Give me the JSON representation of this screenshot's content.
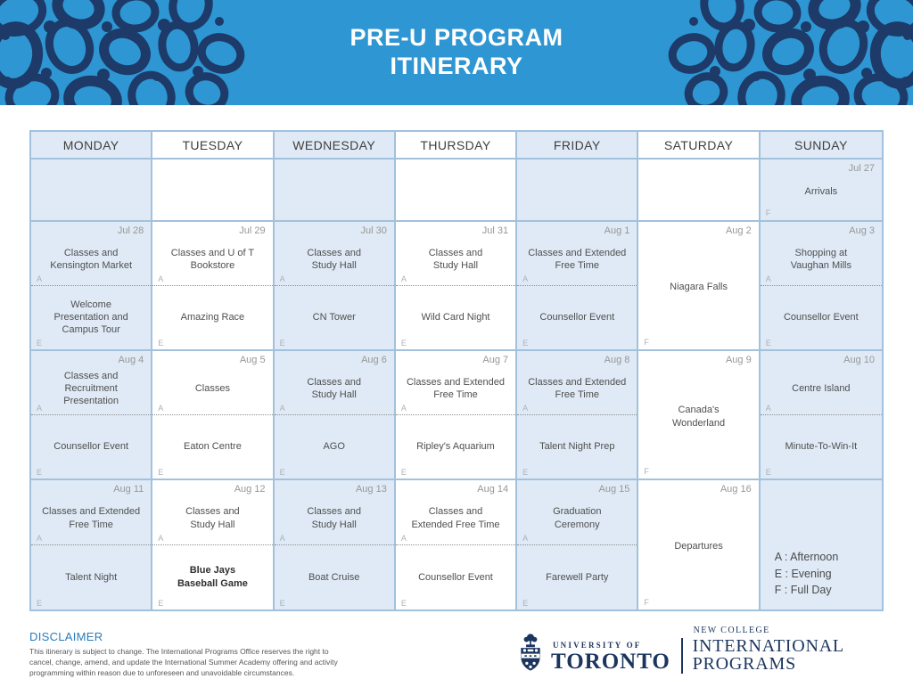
{
  "banner": {
    "title_line1": "PRE-U PROGRAM",
    "title_line2": "ITINERARY"
  },
  "colors": {
    "banner_blue": "#2E96D2",
    "spot_navy": "#1D3A68",
    "cell_light_blue": "#DFEAF6",
    "grid_border": "#A2C1DC",
    "disclaimer_blue": "#2B7BB9",
    "logo_navy": "#1B355F"
  },
  "calendar": {
    "day_headers": [
      "MONDAY",
      "TUESDAY",
      "WEDNESDAY",
      "THURSDAY",
      "FRIDAY",
      "SATURDAY",
      "SUNDAY"
    ],
    "weeks": [
      {
        "cells": [
          {
            "type": "empty"
          },
          {
            "type": "empty"
          },
          {
            "type": "empty"
          },
          {
            "type": "empty"
          },
          {
            "type": "empty"
          },
          {
            "type": "empty"
          },
          {
            "type": "full",
            "date": "Jul 27",
            "activity": "Arrivals",
            "marker": "F"
          }
        ]
      },
      {
        "cells": [
          {
            "type": "split",
            "date": "Jul 28",
            "afternoon": "Classes and\nKensington Market",
            "afternoon_marker": "A",
            "evening": "Welcome\nPresentation and\nCampus Tour",
            "evening_marker": "E"
          },
          {
            "type": "split",
            "date": "Jul 29",
            "afternoon": "Classes and U of T\nBookstore",
            "afternoon_marker": "A",
            "evening": "Amazing Race",
            "evening_marker": "E"
          },
          {
            "type": "split",
            "date": "Jul 30",
            "afternoon": "Classes and\nStudy Hall",
            "afternoon_marker": "A",
            "evening": "CN Tower",
            "evening_marker": "E"
          },
          {
            "type": "split",
            "date": "Jul 31",
            "afternoon": "Classes and\nStudy Hall",
            "afternoon_marker": "A",
            "evening": "Wild Card Night",
            "evening_marker": "E"
          },
          {
            "type": "split",
            "date": "Aug 1",
            "afternoon": "Classes and Extended\nFree Time",
            "afternoon_marker": "A",
            "evening": "Counsellor Event",
            "evening_marker": "E"
          },
          {
            "type": "full",
            "date": "Aug 2",
            "activity": "Niagara Falls",
            "marker": "F"
          },
          {
            "type": "split",
            "date": "Aug 3",
            "afternoon": "Shopping at\nVaughan Mills",
            "afternoon_marker": "A",
            "evening": "Counsellor Event",
            "evening_marker": "E"
          }
        ]
      },
      {
        "cells": [
          {
            "type": "split",
            "date": "Aug 4",
            "afternoon": "Classes and\nRecruitment\nPresentation",
            "afternoon_marker": "A",
            "evening": "Counsellor Event",
            "evening_marker": "E"
          },
          {
            "type": "split",
            "date": "Aug 5",
            "afternoon": "Classes",
            "afternoon_marker": "A",
            "evening": "Eaton Centre",
            "evening_marker": "E"
          },
          {
            "type": "split",
            "date": "Aug 6",
            "afternoon": "Classes and\nStudy Hall",
            "afternoon_marker": "A",
            "evening": "AGO",
            "evening_marker": "E"
          },
          {
            "type": "split",
            "date": "Aug 7",
            "afternoon": "Classes and Extended\nFree Time",
            "afternoon_marker": "A",
            "evening": "Ripley's Aquarium",
            "evening_marker": "E"
          },
          {
            "type": "split",
            "date": "Aug 8",
            "afternoon": "Classes and Extended\nFree Time",
            "afternoon_marker": "A",
            "evening": "Talent Night Prep",
            "evening_marker": "E"
          },
          {
            "type": "full",
            "date": "Aug 9",
            "activity": "Canada's\nWonderland",
            "marker": "F"
          },
          {
            "type": "split",
            "date": "Aug 10",
            "afternoon": "Centre Island",
            "afternoon_marker": "A",
            "evening": "Minute-To-Win-It",
            "evening_marker": "E"
          }
        ]
      },
      {
        "cells": [
          {
            "type": "split",
            "date": "Aug 11",
            "afternoon": "Classes and Extended\nFree Time",
            "afternoon_marker": "A",
            "evening": "Talent Night",
            "evening_marker": "E"
          },
          {
            "type": "split",
            "date": "Aug 12",
            "afternoon": "Classes and\nStudy Hall",
            "afternoon_marker": "A",
            "evening": "Blue Jays\nBaseball Game",
            "evening_marker": "E",
            "evening_emphasis": true
          },
          {
            "type": "split",
            "date": "Aug 13",
            "afternoon": "Classes and\nStudy Hall",
            "afternoon_marker": "A",
            "evening": "Boat Cruise",
            "evening_marker": "E"
          },
          {
            "type": "split",
            "date": "Aug 14",
            "afternoon": "Classes and\nExtended Free Time",
            "afternoon_marker": "A",
            "evening": "Counsellor Event",
            "evening_marker": "E"
          },
          {
            "type": "split",
            "date": "Aug 15",
            "afternoon": "Graduation\nCeremony",
            "afternoon_marker": "A",
            "evening": "Farewell Party",
            "evening_marker": "E"
          },
          {
            "type": "full",
            "date": "Aug 16",
            "activity": "Departures",
            "marker": "F"
          },
          {
            "type": "legend"
          }
        ]
      }
    ]
  },
  "legend": {
    "lines": [
      "A  : Afternoon",
      "E  : Evening",
      "F  : Full Day"
    ]
  },
  "disclaimer": {
    "title": "DISCLAIMER",
    "body": "This itinerary is subject to change. The International Programs Office reserves the right to cancel, change, amend, and update the International Summer Academy offering and activity programming within reason due to unforeseen and unavoidable circumstances."
  },
  "footer": {
    "uoft_top": "UNIVERSITY OF",
    "uoft_name": "TORONTO",
    "nc_top": "NEW COLLEGE",
    "nc_name": "INTERNATIONAL PROGRAMS"
  }
}
